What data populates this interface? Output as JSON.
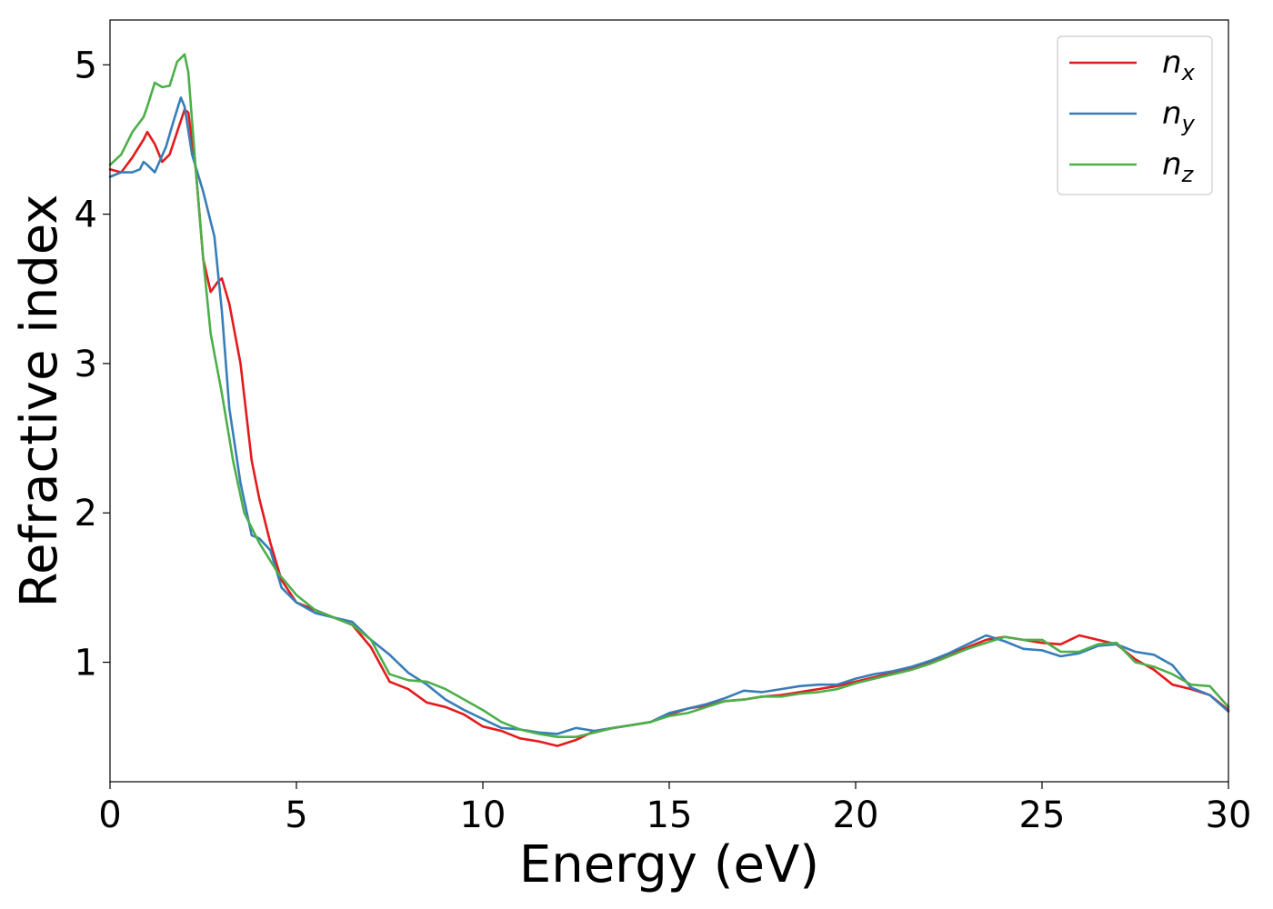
{
  "chart_data": {
    "type": "line",
    "title": "",
    "xlabel": "Energy (eV)",
    "ylabel": "Refractive index",
    "xlim": [
      0,
      30
    ],
    "ylim": [
      0.2,
      5.3
    ],
    "xticks": [
      0,
      5,
      10,
      15,
      20,
      25,
      30
    ],
    "yticks": [
      1,
      2,
      3,
      4,
      5
    ],
    "grid": false,
    "legend_position": "top-right",
    "series": [
      {
        "name": "n_x",
        "legend_base": "n",
        "legend_sub": "x",
        "color": "#e41a1c",
        "x": [
          0,
          0.3,
          0.6,
          0.9,
          1.0,
          1.2,
          1.4,
          1.6,
          1.8,
          2.0,
          2.1,
          2.3,
          2.5,
          2.7,
          2.9,
          3.0,
          3.2,
          3.5,
          3.8,
          4.0,
          4.3,
          4.6,
          5.0,
          5.5,
          6.0,
          6.5,
          7.0,
          7.5,
          8.0,
          8.5,
          9.0,
          9.5,
          10.0,
          10.5,
          11.0,
          11.5,
          12.0,
          12.5,
          13.0,
          13.5,
          14.0,
          14.5,
          15.0,
          15.5,
          16.0,
          16.5,
          17.0,
          17.5,
          18.0,
          18.5,
          19.0,
          19.5,
          20.0,
          20.5,
          21.0,
          21.5,
          22.0,
          22.5,
          23.0,
          23.5,
          24.0,
          24.5,
          25.0,
          25.5,
          26.0,
          26.5,
          27.0,
          27.5,
          28.0,
          28.5,
          29.0,
          29.5,
          30.0
        ],
        "y": [
          4.3,
          4.28,
          4.38,
          4.5,
          4.55,
          4.47,
          4.35,
          4.4,
          4.55,
          4.7,
          4.68,
          4.3,
          3.7,
          3.48,
          3.55,
          3.57,
          3.4,
          3.0,
          2.35,
          2.1,
          1.8,
          1.55,
          1.4,
          1.35,
          1.3,
          1.25,
          1.1,
          0.87,
          0.82,
          0.73,
          0.7,
          0.65,
          0.57,
          0.54,
          0.49,
          0.47,
          0.44,
          0.48,
          0.54,
          0.56,
          0.58,
          0.6,
          0.65,
          0.69,
          0.71,
          0.74,
          0.75,
          0.77,
          0.78,
          0.8,
          0.82,
          0.84,
          0.87,
          0.9,
          0.93,
          0.96,
          1.0,
          1.05,
          1.1,
          1.15,
          1.17,
          1.15,
          1.13,
          1.12,
          1.18,
          1.15,
          1.12,
          1.02,
          0.95,
          0.85,
          0.82,
          0.78,
          0.68
        ]
      },
      {
        "name": "n_y",
        "legend_base": "n",
        "legend_sub": "y",
        "color": "#377eb8",
        "x": [
          0,
          0.3,
          0.6,
          0.8,
          0.9,
          1.0,
          1.2,
          1.5,
          1.7,
          1.9,
          2.0,
          2.2,
          2.5,
          2.8,
          3.0,
          3.2,
          3.5,
          3.8,
          4.0,
          4.3,
          4.6,
          5.0,
          5.5,
          6.0,
          6.5,
          7.0,
          7.5,
          8.0,
          8.5,
          9.0,
          9.5,
          10.0,
          10.5,
          11.0,
          11.5,
          12.0,
          12.5,
          13.0,
          13.5,
          14.0,
          14.5,
          15.0,
          15.5,
          16.0,
          16.5,
          17.0,
          17.5,
          18.0,
          18.5,
          19.0,
          19.5,
          20.0,
          20.5,
          21.0,
          21.5,
          22.0,
          22.5,
          23.0,
          23.5,
          24.0,
          24.5,
          25.0,
          25.5,
          26.0,
          26.5,
          27.0,
          27.5,
          28.0,
          28.5,
          29.0,
          29.5,
          30.0
        ],
        "y": [
          4.25,
          4.28,
          4.28,
          4.3,
          4.35,
          4.33,
          4.28,
          4.45,
          4.62,
          4.78,
          4.72,
          4.4,
          4.15,
          3.85,
          3.35,
          2.7,
          2.2,
          1.85,
          1.83,
          1.75,
          1.5,
          1.4,
          1.33,
          1.3,
          1.27,
          1.15,
          1.05,
          0.93,
          0.85,
          0.75,
          0.68,
          0.62,
          0.56,
          0.55,
          0.53,
          0.52,
          0.56,
          0.54,
          0.56,
          0.58,
          0.6,
          0.66,
          0.69,
          0.72,
          0.76,
          0.81,
          0.8,
          0.82,
          0.84,
          0.85,
          0.85,
          0.89,
          0.92,
          0.94,
          0.97,
          1.01,
          1.06,
          1.12,
          1.18,
          1.14,
          1.09,
          1.08,
          1.04,
          1.06,
          1.11,
          1.12,
          1.07,
          1.05,
          0.98,
          0.83,
          0.78,
          0.67
        ]
      },
      {
        "name": "n_z",
        "legend_base": "n",
        "legend_sub": "z",
        "color": "#4daf4a",
        "x": [
          0,
          0.3,
          0.6,
          0.9,
          1.0,
          1.2,
          1.4,
          1.6,
          1.8,
          2.0,
          2.1,
          2.3,
          2.5,
          2.7,
          3.0,
          3.3,
          3.6,
          4.0,
          4.5,
          5.0,
          5.5,
          6.0,
          6.5,
          7.0,
          7.5,
          8.0,
          8.5,
          9.0,
          9.5,
          10.0,
          10.5,
          11.0,
          11.5,
          12.0,
          12.5,
          13.0,
          13.5,
          14.0,
          14.5,
          15.0,
          15.5,
          16.0,
          16.5,
          17.0,
          17.5,
          18.0,
          18.5,
          19.0,
          19.5,
          20.0,
          20.5,
          21.0,
          21.5,
          22.0,
          22.5,
          23.0,
          23.5,
          24.0,
          24.5,
          25.0,
          25.5,
          26.0,
          26.5,
          27.0,
          27.5,
          28.0,
          28.5,
          29.0,
          29.5,
          30.0
        ],
        "y": [
          4.33,
          4.4,
          4.55,
          4.65,
          4.72,
          4.88,
          4.85,
          4.86,
          5.02,
          5.07,
          4.95,
          4.3,
          3.7,
          3.2,
          2.8,
          2.35,
          2.0,
          1.8,
          1.6,
          1.45,
          1.35,
          1.3,
          1.25,
          1.15,
          0.92,
          0.88,
          0.87,
          0.82,
          0.75,
          0.68,
          0.6,
          0.55,
          0.52,
          0.5,
          0.5,
          0.53,
          0.56,
          0.58,
          0.6,
          0.64,
          0.66,
          0.7,
          0.74,
          0.75,
          0.77,
          0.77,
          0.79,
          0.8,
          0.82,
          0.86,
          0.89,
          0.92,
          0.95,
          0.99,
          1.04,
          1.09,
          1.13,
          1.17,
          1.15,
          1.15,
          1.07,
          1.07,
          1.12,
          1.13,
          1.0,
          0.97,
          0.92,
          0.85,
          0.84,
          0.7
        ]
      }
    ]
  }
}
